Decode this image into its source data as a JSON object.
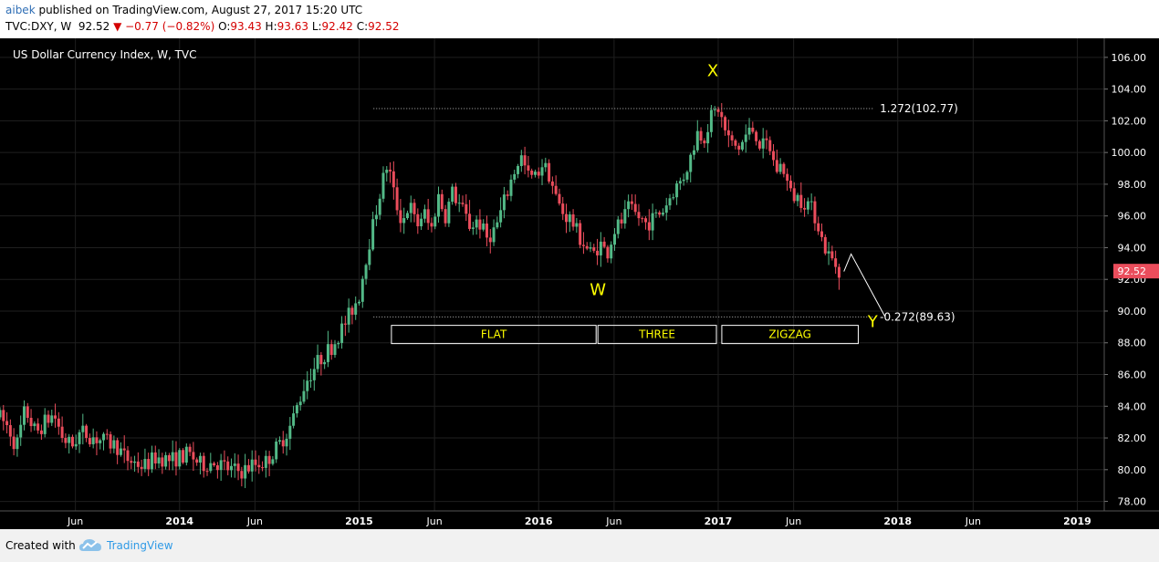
{
  "header": {
    "author": "aibek",
    "published_text": " published on TradingView.com, August 27, 2017 15:20 UTC",
    "symbol": "TVC:DXY, W",
    "last": "92.52",
    "change": "▼ −0.77 (−0.82%)",
    "o_label": "O:",
    "o": "93.43",
    "h_label": "H:",
    "h": "93.63",
    "l_label": "L:",
    "l": "92.42",
    "c_label": "C:",
    "c": "92.52"
  },
  "footer": {
    "created_with": "Created with",
    "brand": "TradingView",
    "logo_icon": "tradingview-cloud-icon"
  },
  "colors": {
    "background": "#000000",
    "up": "#53b987",
    "down": "#eb4d5c",
    "grid": "#1f1f1f",
    "annotation": "#ffff00",
    "price_badge": "#eb4d5c",
    "brand": "#2f9ae6"
  },
  "chart_data": {
    "type": "candlestick",
    "title": "US Dollar Currency Index, W, TVC",
    "y_ticks": [
      "106.00",
      "104.00",
      "102.00",
      "100.00",
      "98.00",
      "96.00",
      "94.00",
      "92.00",
      "90.00",
      "88.00",
      "86.00",
      "84.00",
      "82.00",
      "80.00",
      "78.00"
    ],
    "ylim": [
      77.4,
      107.2
    ],
    "x_ticks": [
      {
        "label": "Jun",
        "t": 2013.42
      },
      {
        "label": "2014",
        "t": 2014.0
      },
      {
        "label": "Jun",
        "t": 2014.42
      },
      {
        "label": "2015",
        "t": 2015.0
      },
      {
        "label": "Jun",
        "t": 2015.42
      },
      {
        "label": "2016",
        "t": 2016.0
      },
      {
        "label": "Jun",
        "t": 2016.42
      },
      {
        "label": "2017",
        "t": 2017.0
      },
      {
        "label": "Jun",
        "t": 2017.42
      },
      {
        "label": "2018",
        "t": 2018.0
      },
      {
        "label": "Jun",
        "t": 2018.42
      },
      {
        "label": "2019",
        "t": 2019.0
      }
    ],
    "xlim": [
      2013.0,
      2019.15
    ],
    "last_price": "92.52",
    "grid": true,
    "price_path": [
      [
        2013.0,
        83.3
      ],
      [
        2013.05,
        82.6
      ],
      [
        2013.09,
        81.4
      ],
      [
        2013.14,
        83.8
      ],
      [
        2013.2,
        82.3
      ],
      [
        2013.25,
        83.0
      ],
      [
        2013.3,
        83.5
      ],
      [
        2013.35,
        82.0
      ],
      [
        2013.4,
        81.5
      ],
      [
        2013.45,
        82.4
      ],
      [
        2013.55,
        81.9
      ],
      [
        2013.65,
        81.5
      ],
      [
        2013.7,
        80.7
      ],
      [
        2013.8,
        80.2
      ],
      [
        2013.87,
        80.8
      ],
      [
        2013.95,
        80.6
      ],
      [
        2014.05,
        81.0
      ],
      [
        2014.12,
        80.3
      ],
      [
        2014.2,
        80.5
      ],
      [
        2014.28,
        80.0
      ],
      [
        2014.35,
        79.9
      ],
      [
        2014.4,
        80.3
      ],
      [
        2014.48,
        80.5
      ],
      [
        2014.55,
        81.5
      ],
      [
        2014.62,
        82.8
      ],
      [
        2014.7,
        85.5
      ],
      [
        2014.77,
        86.8
      ],
      [
        2014.85,
        87.8
      ],
      [
        2014.92,
        89.2
      ],
      [
        2015.0,
        91.0
      ],
      [
        2015.04,
        93.5
      ],
      [
        2015.08,
        95.5
      ],
      [
        2015.12,
        97.7
      ],
      [
        2015.16,
        99.4
      ],
      [
        2015.2,
        97.0
      ],
      [
        2015.24,
        95.6
      ],
      [
        2015.28,
        96.8
      ],
      [
        2015.32,
        95.3
      ],
      [
        2015.36,
        96.3
      ],
      [
        2015.4,
        95.0
      ],
      [
        2015.44,
        97.3
      ],
      [
        2015.48,
        96.0
      ],
      [
        2015.52,
        97.5
      ],
      [
        2015.57,
        96.5
      ],
      [
        2015.62,
        95.3
      ],
      [
        2015.66,
        95.8
      ],
      [
        2015.71,
        94.6
      ],
      [
        2015.76,
        95.2
      ],
      [
        2015.82,
        97.3
      ],
      [
        2015.86,
        98.7
      ],
      [
        2015.9,
        99.8
      ],
      [
        2015.94,
        98.5
      ],
      [
        2015.98,
        98.4
      ],
      [
        2016.02,
        99.3
      ],
      [
        2016.06,
        98.6
      ],
      [
        2016.1,
        97.0
      ],
      [
        2016.14,
        96.1
      ],
      [
        2016.18,
        95.8
      ],
      [
        2016.22,
        94.8
      ],
      [
        2016.26,
        94.1
      ],
      [
        2016.3,
        93.5
      ],
      [
        2016.34,
        94.3
      ],
      [
        2016.38,
        93.6
      ],
      [
        2016.42,
        95.1
      ],
      [
        2016.46,
        95.6
      ],
      [
        2016.5,
        96.4
      ],
      [
        2016.55,
        96.0
      ],
      [
        2016.6,
        95.5
      ],
      [
        2016.65,
        95.9
      ],
      [
        2016.7,
        96.5
      ],
      [
        2016.75,
        97.6
      ],
      [
        2016.8,
        98.3
      ],
      [
        2016.85,
        99.8
      ],
      [
        2016.88,
        101.3
      ],
      [
        2016.92,
        101.0
      ],
      [
        2016.96,
        102.2
      ],
      [
        2017.0,
        102.8
      ],
      [
        2017.04,
        101.3
      ],
      [
        2017.08,
        100.4
      ],
      [
        2017.12,
        100.3
      ],
      [
        2017.16,
        101.2
      ],
      [
        2017.2,
        101.5
      ],
      [
        2017.24,
        100.3
      ],
      [
        2017.28,
        100.6
      ],
      [
        2017.32,
        98.9
      ],
      [
        2017.36,
        99.2
      ],
      [
        2017.4,
        97.4
      ],
      [
        2017.45,
        97.1
      ],
      [
        2017.5,
        96.8
      ],
      [
        2017.55,
        95.8
      ],
      [
        2017.58,
        94.4
      ],
      [
        2017.62,
        93.4
      ],
      [
        2017.65,
        93.0
      ],
      [
        2017.68,
        92.5
      ]
    ],
    "annotations": [
      {
        "label": "1.272(102.77)",
        "price": 102.77
      },
      {
        "label": "-0.272(89.63)",
        "price": 89.63
      }
    ],
    "wave_labels": [
      {
        "label": "X",
        "t": 2016.97,
        "price": 104.8
      },
      {
        "label": "W",
        "t": 2016.33,
        "price": 91.0
      },
      {
        "label": "Y",
        "t": 2017.86,
        "price": 89.0
      }
    ],
    "patterns": [
      "FLAT",
      "THREE",
      "ZIGZAG"
    ],
    "projection": [
      [
        2017.7,
        92.5
      ],
      [
        2017.74,
        93.6
      ],
      [
        2017.93,
        89.63
      ]
    ]
  }
}
